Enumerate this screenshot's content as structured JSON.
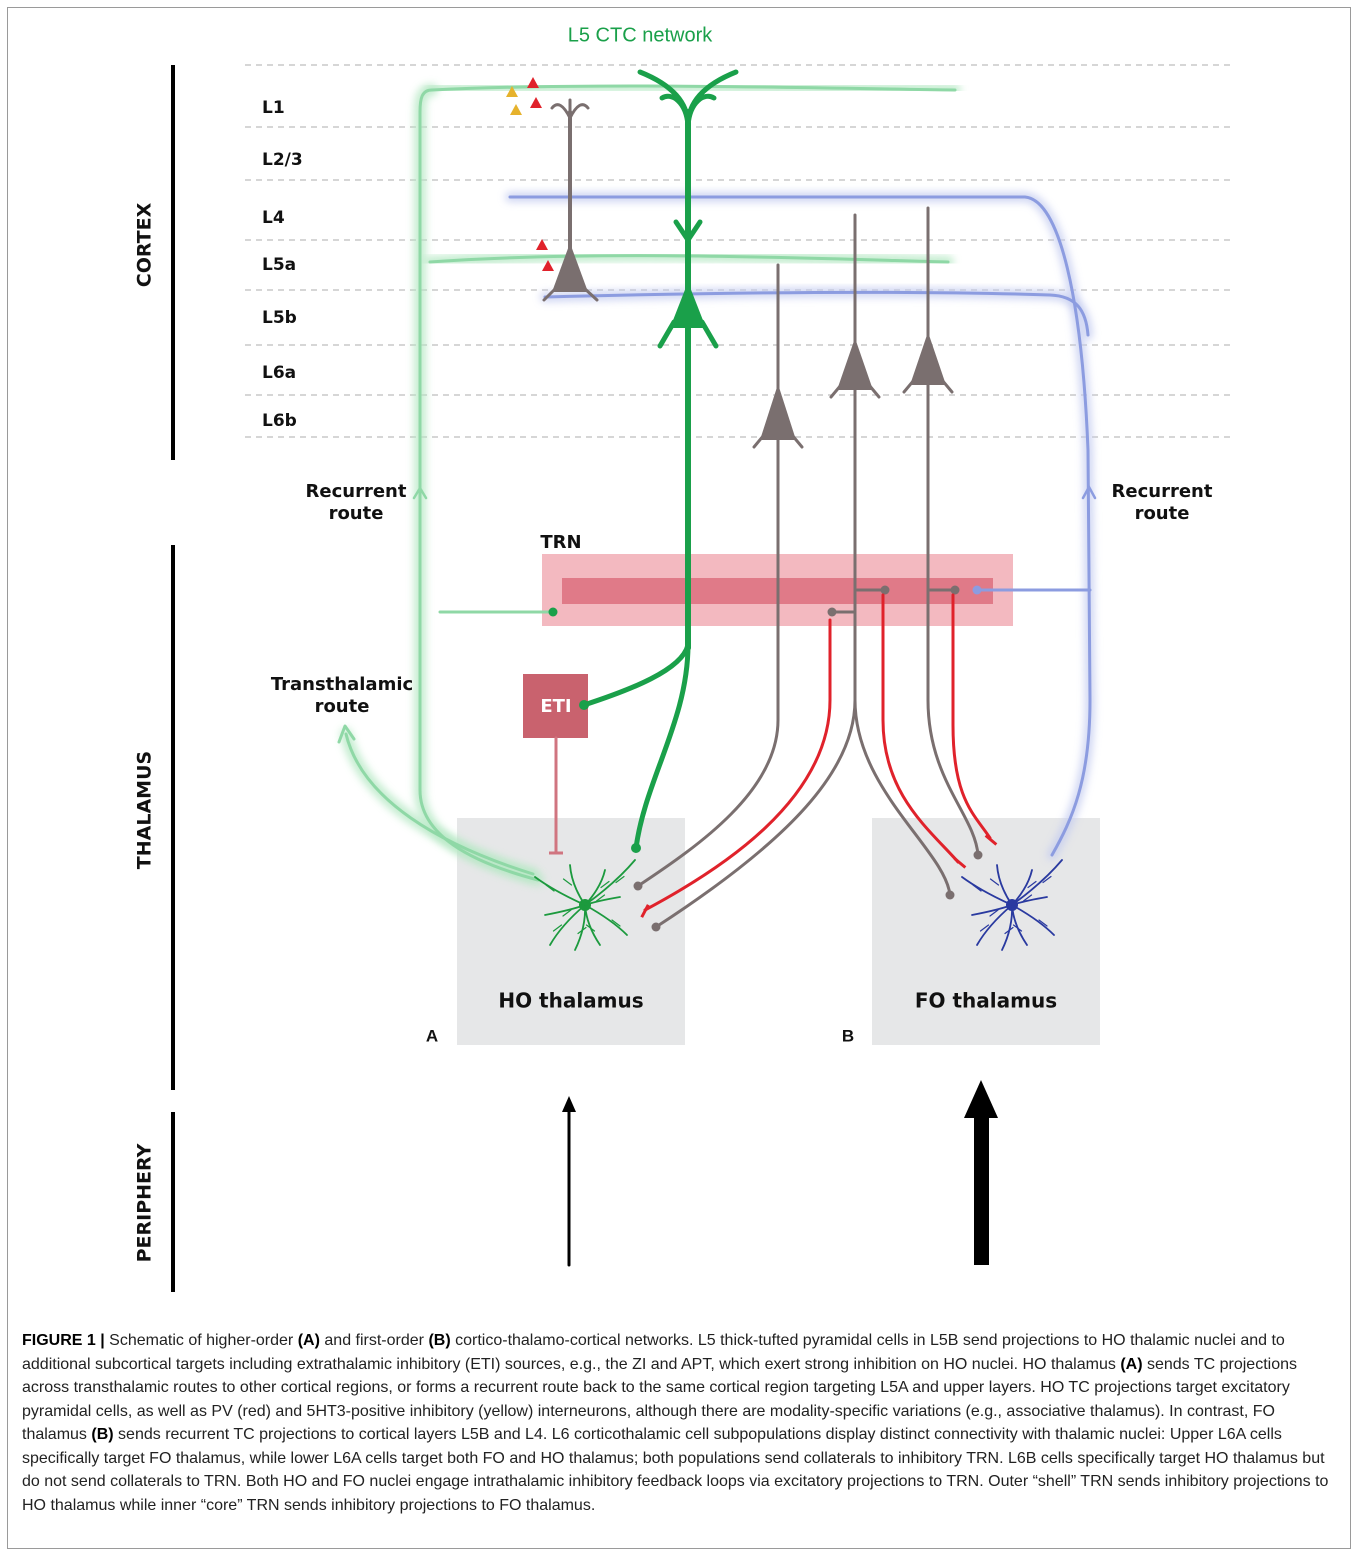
{
  "title": "L5 CTC network",
  "regions": {
    "cortex": "CORTEX",
    "thalamus": "THALAMUS",
    "periphery": "PERIPHERY"
  },
  "layers": [
    "L1",
    "L2/3",
    "L4",
    "L5a",
    "L5b",
    "L6a",
    "L6b"
  ],
  "routes": {
    "recurrent_left": [
      "Recurrent",
      "route"
    ],
    "recurrent_right": [
      "Recurrent",
      "route"
    ],
    "transthalamic": [
      "Transthalamic",
      "route"
    ]
  },
  "trn": "TRN",
  "eti": "ETI",
  "nuclei": {
    "ho": "HO thalamus",
    "fo": "FO thalamus"
  },
  "panels": {
    "a": "A",
    "b": "B"
  },
  "caption": [
    "FIGURE 1 |",
    "Schematic of higher-order",
    "(A)",
    "and first-order",
    "(B)",
    "cortico-thalamo-cortical networks. L5 thick-tufted pyramidal cells in L5B send projections to HO thalamic nuclei and to additional subcortical targets including extrathalamic inhibitory (ETI) sources, e.g., the ZI and APT, which exert strong inhibition on HO nuclei. HO thalamus",
    "(A)",
    "sends TC projections across transthalamic routes to other cortical regions, or forms a recurrent route back to the same cortical region targeting L5A and upper layers. HO TC projections target excitatory pyramidal cells, as well as PV (red) and 5HT3-positive inhibitory (yellow) interneurons, although there are modality-specific variations (e.g., associative thalamus). In contrast, FO thalamus",
    "(B)",
    "sends recurrent TC projections to cortical layers L5B and L4. L6 corticothalamic cell subpopulations display distinct connectivity with thalamic nuclei: Upper L6A cells specifically target FO thalamus, while lower L6A cells target both FO and HO thalamus; both populations send collaterals to inhibitory TRN. L6B cells specifically target HO thalamus but do not send collaterals to TRN. Both HO and FO nuclei engage intrathalamic inhibitory feedback loops via excitatory projections to TRN. Outer “shell” TRN sends inhibitory projections to HO thalamus while inner “core” TRN sends inhibitory projections to FO thalamus."
  ]
}
